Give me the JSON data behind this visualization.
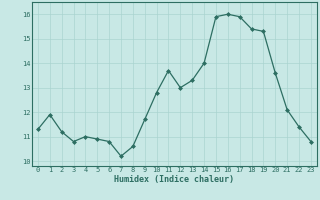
{
  "x": [
    0,
    1,
    2,
    3,
    4,
    5,
    6,
    7,
    8,
    9,
    10,
    11,
    12,
    13,
    14,
    15,
    16,
    17,
    18,
    19,
    20,
    21,
    22,
    23
  ],
  "y": [
    11.3,
    11.9,
    11.2,
    10.8,
    11.0,
    10.9,
    10.8,
    10.2,
    10.6,
    11.7,
    12.8,
    13.7,
    13.0,
    13.3,
    14.0,
    15.9,
    16.0,
    15.9,
    15.4,
    15.3,
    13.6,
    12.1,
    11.4,
    10.8
  ],
  "xlabel": "Humidex (Indice chaleur)",
  "ylim": [
    9.8,
    16.5
  ],
  "xlim": [
    -0.5,
    23.5
  ],
  "yticks": [
    10,
    11,
    12,
    13,
    14,
    15,
    16
  ],
  "xticks": [
    0,
    1,
    2,
    3,
    4,
    5,
    6,
    7,
    8,
    9,
    10,
    11,
    12,
    13,
    14,
    15,
    16,
    17,
    18,
    19,
    20,
    21,
    22,
    23
  ],
  "line_color": "#2d6e62",
  "marker_color": "#2d6e62",
  "bg_color": "#c8e8e5",
  "grid_color": "#aad4d0",
  "spine_color": "#2d6e62",
  "tick_fontsize": 5.0,
  "xlabel_fontsize": 6.0
}
